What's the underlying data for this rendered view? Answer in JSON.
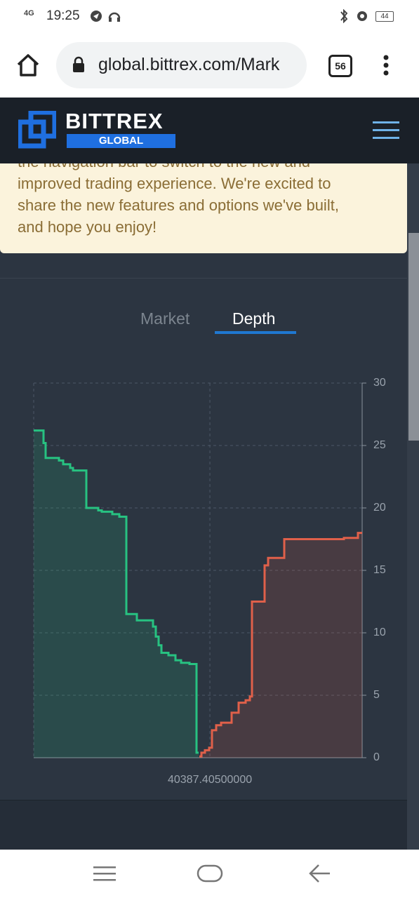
{
  "status_bar": {
    "network": "4G",
    "time": "19:25",
    "battery": "44"
  },
  "browser": {
    "url": "global.bittrex.com/Mark",
    "tab_count": "56"
  },
  "header": {
    "brand": "BITTREX",
    "brand_sub": "GLOBAL"
  },
  "notice": {
    "lines": [
      "the navigation bar to switch to the new and",
      "improved trading experience.  We're excited to",
      "share the new features and options we've built,",
      "and hope you enjoy!"
    ]
  },
  "tabs": [
    "Market",
    "Depth"
  ],
  "chart_data": {
    "type": "depth",
    "series": [
      {
        "name": "bids",
        "color": "#27c281",
        "x": [
          40362.3,
          40363.7,
          40364.0,
          40365.9,
          40366.5,
          40367.5,
          40367.9,
          40369.8,
          40371.5,
          40372.0,
          40373.5,
          40374.5,
          40375.5,
          40377.0,
          40379.3,
          40379.7,
          40380.1,
          40380.5,
          40381.5,
          40382.5,
          40383.3,
          40384.5,
          40385.5,
          40385.8
        ],
        "values": [
          26.2,
          25.2,
          24.0,
          23.8,
          23.5,
          23.2,
          23.0,
          20.0,
          19.8,
          19.7,
          19.5,
          19.3,
          11.5,
          11.0,
          10.5,
          9.7,
          9.0,
          8.4,
          8.2,
          7.8,
          7.6,
          7.5,
          0.4,
          0.4
        ]
      },
      {
        "name": "asks",
        "color": "#e0604a",
        "x": [
          40385.9,
          40386.2,
          40386.7,
          40387.3,
          40387.7,
          40388.3,
          40389.0,
          40390.5,
          40391.5,
          40392.5,
          40393.1,
          40393.4,
          40395.2,
          40395.7,
          40398.0,
          40406.5,
          40408.5,
          40409.1
        ],
        "values": [
          0.1,
          0.4,
          0.6,
          0.8,
          2.2,
          2.6,
          2.8,
          3.6,
          4.4,
          4.6,
          4.9,
          12.5,
          15.4,
          16.0,
          17.5,
          17.6,
          18.0,
          18.0
        ]
      }
    ],
    "xlim": [
      40362.3,
      40409.1
    ],
    "xticks": [
      {
        "value": 40387.405,
        "label": "40387.40500000"
      }
    ],
    "ylim": [
      0,
      30
    ],
    "yticks": [
      0,
      5,
      10,
      15,
      20,
      25,
      30
    ],
    "grid": true
  }
}
